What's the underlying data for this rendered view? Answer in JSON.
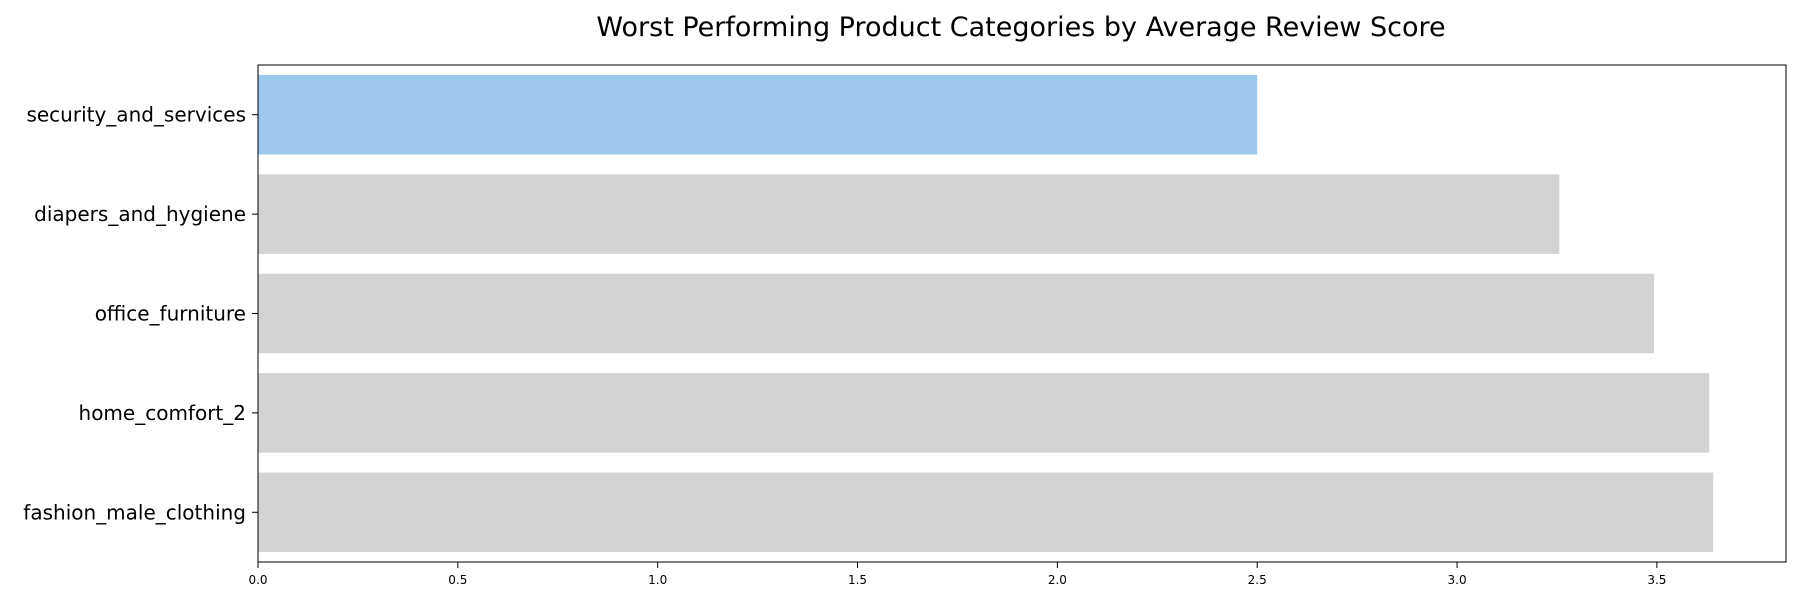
{
  "chart_data": {
    "type": "bar",
    "orientation": "horizontal",
    "title": "Worst Performing Product Categories by Average Review Score",
    "xlabel": "",
    "ylabel": "",
    "categories": [
      "security_and_services",
      "diapers_and_hygiene",
      "office_furniture",
      "home_comfort_2",
      "fashion_male_clothing"
    ],
    "values": [
      2.5,
      3.256,
      3.493,
      3.631,
      3.641
    ],
    "highlight_index": 0,
    "xlim": [
      0,
      3.823
    ],
    "xticks": [
      "0.0",
      "0.5",
      "1.0",
      "1.5",
      "2.0",
      "2.5",
      "3.0",
      "3.5"
    ],
    "grid": false,
    "colors": {
      "highlight": "#9ec9ec",
      "default": "#d3d3d3"
    }
  }
}
